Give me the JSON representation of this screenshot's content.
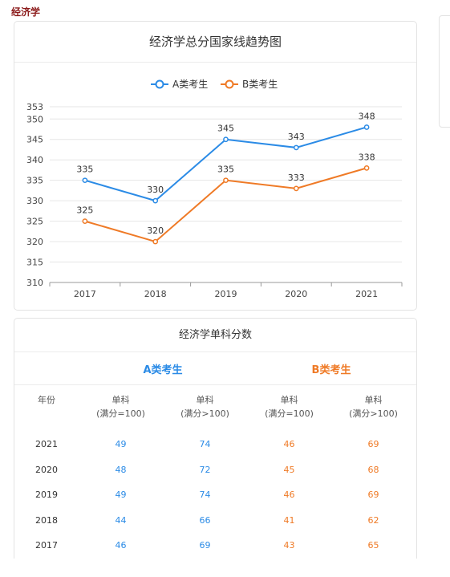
{
  "page_heading": "经济学",
  "chart_card": {
    "title": "经济学总分国家线趋势图"
  },
  "colors": {
    "a": "#2b8be6",
    "b": "#ef7a26"
  },
  "chart_data": {
    "type": "line",
    "title": "经济学总分国家线趋势图",
    "categories": [
      "2017",
      "2018",
      "2019",
      "2020",
      "2021"
    ],
    "series": [
      {
        "name": "A类考生",
        "values": [
          335,
          330,
          345,
          343,
          348
        ],
        "color": "#2b8be6"
      },
      {
        "name": "B类考生",
        "values": [
          325,
          320,
          335,
          333,
          338
        ],
        "color": "#ef7a26"
      }
    ],
    "yticks": [
      310,
      315,
      320,
      325,
      330,
      335,
      340,
      345,
      350,
      353
    ],
    "ylim": [
      310,
      353
    ],
    "grid": true,
    "legend": "top-center",
    "data_labels": true
  },
  "table": {
    "title": "经济学单科分数",
    "group_a": "A类考生",
    "group_b": "B类考生",
    "headers": [
      {
        "line1": "年份",
        "line2": ""
      },
      {
        "line1": "单科",
        "line2": "(满分=100)"
      },
      {
        "line1": "单科",
        "line2": "(满分>100)"
      },
      {
        "line1": "单科",
        "line2": "(满分=100)"
      },
      {
        "line1": "单科",
        "line2": "(满分>100)"
      }
    ],
    "rows": [
      {
        "year": "2021",
        "a100": "49",
        "a_over": "74",
        "b100": "46",
        "b_over": "69"
      },
      {
        "year": "2020",
        "a100": "48",
        "a_over": "72",
        "b100": "45",
        "b_over": "68"
      },
      {
        "year": "2019",
        "a100": "49",
        "a_over": "74",
        "b100": "46",
        "b_over": "69"
      },
      {
        "year": "2018",
        "a100": "44",
        "a_over": "66",
        "b100": "41",
        "b_over": "62"
      },
      {
        "year": "2017",
        "a100": "46",
        "a_over": "69",
        "b100": "43",
        "b_over": "65"
      }
    ]
  }
}
